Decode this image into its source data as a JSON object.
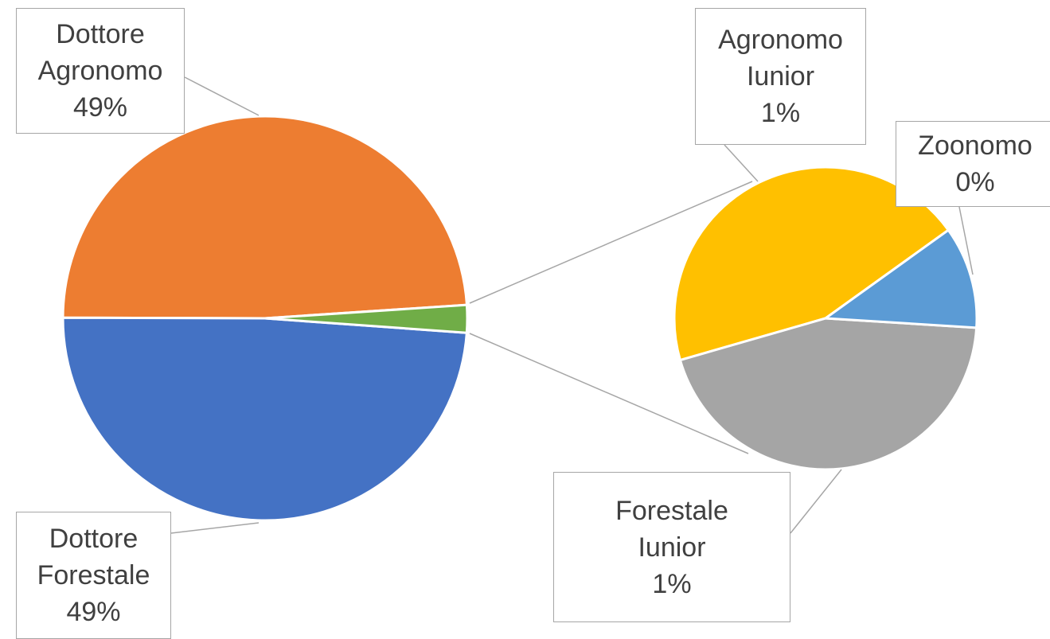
{
  "chart_data": {
    "type": "pie-of-pie",
    "categories": [
      "Dottore Agronomo",
      "Dottore Forestale",
      "Agronomo Iunior",
      "Forestale Iunior",
      "Zoonomo"
    ],
    "values": [
      48.9,
      48.9,
      0.98,
      0.98,
      0.24
    ],
    "value_labels": [
      "49%",
      "49%",
      "1%",
      "1%",
      "0%"
    ],
    "colors": [
      "#ed7d31",
      "#4472c4",
      "#ffc000",
      "#a5a5a5",
      "#5b9bd5"
    ],
    "other_color": "#70ad47",
    "secondary_count": 3
  }
}
